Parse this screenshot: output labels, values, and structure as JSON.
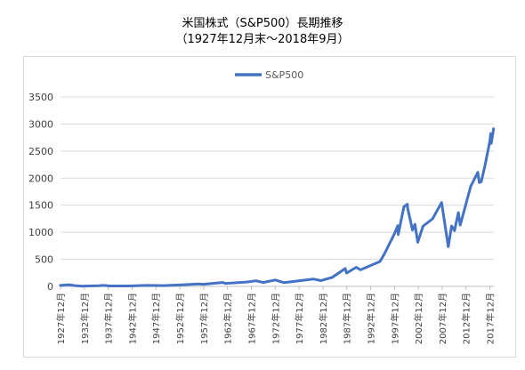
{
  "header": {
    "title_line1": "米国株式（S&P500）長期推移",
    "title_line2": "（1927年12月末～2018年9月）"
  },
  "colors": {
    "series": "#4472c4",
    "grid": "#d9d9d9",
    "axis": "#bfbfbf"
  },
  "chart_data": {
    "type": "line",
    "title": "米国株式（S&P500）長期推移",
    "subtitle": "（1927年12月末～2018年9月）",
    "legend_position": "top",
    "grid": true,
    "ylim": [
      0,
      3500
    ],
    "yticks": [
      0,
      500,
      1000,
      1500,
      2000,
      2500,
      3000,
      3500
    ],
    "xlim": [
      1927.92,
      2018.75
    ],
    "xtick_labels": [
      "1927年12月",
      "1932年12月",
      "1937年12月",
      "1942年12月",
      "1947年12月",
      "1952年12月",
      "1957年12月",
      "1962年12月",
      "1967年12月",
      "1972年12月",
      "1977年12月",
      "1982年12月",
      "1987年12月",
      "1992年12月",
      "1997年12月",
      "2002年12月",
      "2007年12月",
      "2012年12月",
      "2017年12月"
    ],
    "series": [
      {
        "name": "S&P500",
        "points": [
          [
            1927.9,
            17.7
          ],
          [
            1929.7,
            31.7
          ],
          [
            1930.9,
            15.3
          ],
          [
            1932.4,
            4.8
          ],
          [
            1932.9,
            6.9
          ],
          [
            1935.9,
            13.4
          ],
          [
            1937.0,
            18.0
          ],
          [
            1938.2,
            9.0
          ],
          [
            1942.3,
            7.8
          ],
          [
            1945.9,
            17.4
          ],
          [
            1949.5,
            14.0
          ],
          [
            1952.9,
            26.6
          ],
          [
            1956.9,
            46.7
          ],
          [
            1957.9,
            39.9
          ],
          [
            1961.9,
            71.6
          ],
          [
            1962.5,
            55.0
          ],
          [
            1966.9,
            80.3
          ],
          [
            1968.9,
            103.9
          ],
          [
            1970.4,
            72.7
          ],
          [
            1972.9,
            118.1
          ],
          [
            1974.8,
            68.6
          ],
          [
            1980.9,
            135.8
          ],
          [
            1982.5,
            107.1
          ],
          [
            1984.9,
            167.2
          ],
          [
            1987.6,
            329.8
          ],
          [
            1987.9,
            247.1
          ],
          [
            1989.9,
            353.4
          ],
          [
            1990.8,
            306.1
          ],
          [
            1994.9,
            459.3
          ],
          [
            1995.9,
            615.9
          ],
          [
            1997.9,
            970.4
          ],
          [
            1998.6,
            1120.0
          ],
          [
            1998.7,
            957.3
          ],
          [
            1999.9,
            1469.3
          ],
          [
            2000.6,
            1517.7
          ],
          [
            2000.7,
            1436.5
          ],
          [
            2001.7,
            1040.9
          ],
          [
            2002.2,
            1147.4
          ],
          [
            2002.8,
            815.3
          ],
          [
            2003.9,
            1111.9
          ],
          [
            2005.9,
            1248.3
          ],
          [
            2007.8,
            1549.4
          ],
          [
            2008.9,
            903.3
          ],
          [
            2009.2,
            735.1
          ],
          [
            2009.9,
            1115.1
          ],
          [
            2010.5,
            1030.7
          ],
          [
            2011.3,
            1363.6
          ],
          [
            2011.7,
            1131.4
          ],
          [
            2013.9,
            1848.4
          ],
          [
            2015.4,
            2107.4
          ],
          [
            2015.7,
            1920.0
          ],
          [
            2016.1,
            1932.2
          ],
          [
            2016.9,
            2238.8
          ],
          [
            2017.9,
            2673.6
          ],
          [
            2018.1,
            2823.8
          ],
          [
            2018.2,
            2640.9
          ],
          [
            2018.7,
            2913.9
          ]
        ]
      }
    ]
  }
}
